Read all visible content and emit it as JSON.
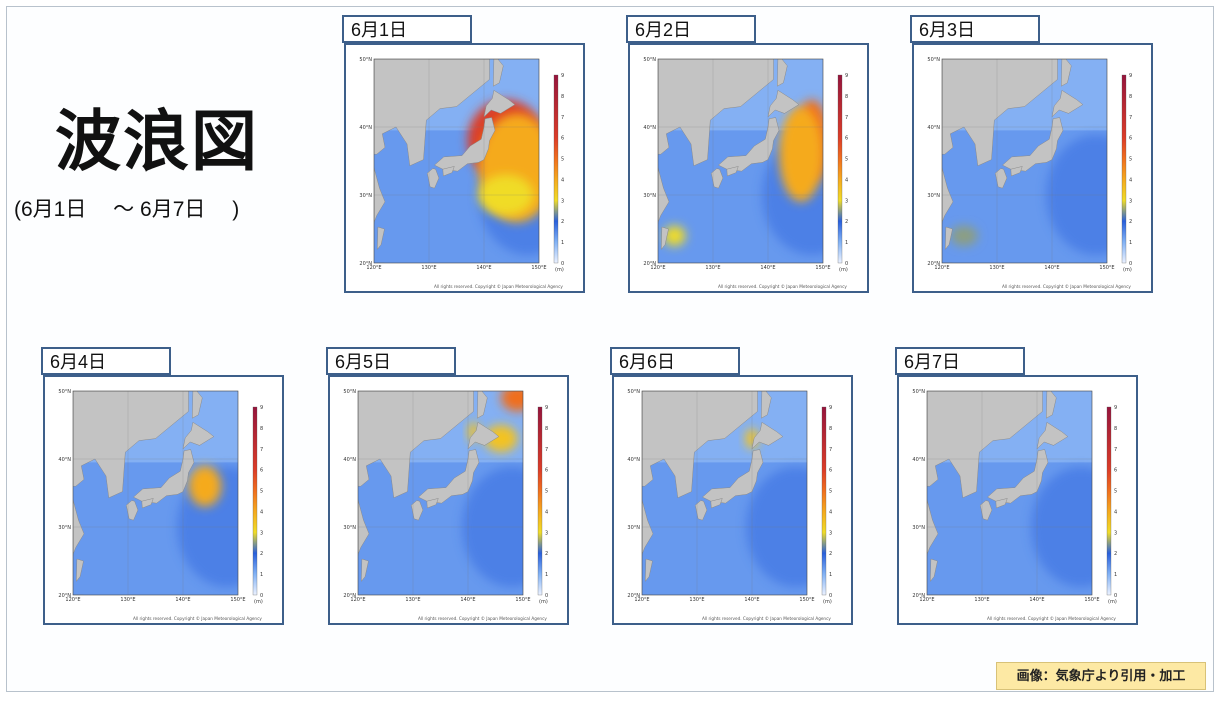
{
  "page": {
    "title": "波浪図",
    "range": "(6月1日　 ～ 6月7日　 )",
    "credit": "画像：気象庁より引用・加工"
  },
  "map_common": {
    "lat_labels": [
      "50°N",
      "40°N",
      "30°N",
      "20°N"
    ],
    "lon_labels": [
      "120°E",
      "130°E",
      "140°E",
      "150°E"
    ],
    "scale_ticks": [
      "9",
      "8",
      "7",
      "6",
      "5",
      "4",
      "3",
      "2",
      "1",
      "0"
    ],
    "unit": "(m)",
    "copyright": "All rights reserved. Copyright © Japan Meteorological Agency"
  },
  "panels": [
    {
      "date": "6月1日",
      "hotspots": [
        {
          "lon": 144,
          "lat": 38,
          "rx": 7,
          "ry": 6,
          "level": 6
        },
        {
          "lon": 146,
          "lat": 34,
          "rx": 7,
          "ry": 8,
          "level": 4
        },
        {
          "lon": 144,
          "lat": 30,
          "rx": 5,
          "ry": 3,
          "level": 3
        }
      ]
    },
    {
      "date": "6月2日",
      "hotspots": [
        {
          "lon": 148,
          "lat": 38,
          "rx": 3,
          "ry": 6,
          "level": 5
        },
        {
          "lon": 146,
          "lat": 36,
          "rx": 4,
          "ry": 7,
          "level": 4
        },
        {
          "lon": 123,
          "lat": 24,
          "rx": 2,
          "ry": 1.5,
          "level": 3
        }
      ]
    },
    {
      "date": "6月3日",
      "hotspots": [
        {
          "lon": 124,
          "lat": 24,
          "rx": 2.5,
          "ry": 1.5,
          "level": 2.5
        }
      ]
    },
    {
      "date": "6月4日",
      "hotspots": [
        {
          "lon": 144,
          "lat": 36,
          "rx": 3,
          "ry": 3,
          "level": 4
        }
      ]
    },
    {
      "date": "6月5日",
      "hotspots": [
        {
          "lon": 149,
          "lat": 49,
          "rx": 3,
          "ry": 2,
          "level": 5
        },
        {
          "lon": 146,
          "lat": 43,
          "rx": 3,
          "ry": 2,
          "level": 3.5
        },
        {
          "lon": 141,
          "lat": 44,
          "rx": 1,
          "ry": 1.5,
          "level": 3.5
        }
      ]
    },
    {
      "date": "6月6日",
      "hotspots": [
        {
          "lon": 140,
          "lat": 43,
          "rx": 1.2,
          "ry": 1.5,
          "level": 3.5
        }
      ]
    },
    {
      "date": "6月7日",
      "hotspots": []
    }
  ]
}
